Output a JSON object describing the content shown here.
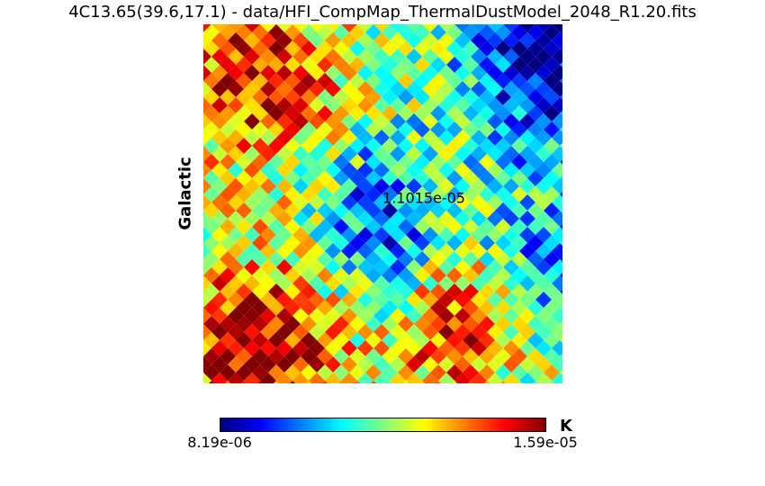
{
  "title": "4C13.65(39.6,17.1) - data/HFI_CompMap_ThermalDustModel_2048_R1.20.fits",
  "coord_label": "Galactic",
  "center_value": "1.1015e-05",
  "colorbar": {
    "min_label": "8.19e-06",
    "max_label": "1.59e-05",
    "unit": "K",
    "colormap": [
      "#000080",
      "#0000ff",
      "#00ffff",
      "#ffff00",
      "#ff0000",
      "#800000"
    ]
  },
  "chart_data": {
    "type": "heatmap",
    "title": "4C13.65(39.6,17.1) - data/HFI_CompMap_ThermalDustModel_2048_R1.20.fits",
    "ylabel": "Galactic",
    "xlabel": "",
    "value_range": [
      8.19e-06,
      1.59e-05
    ],
    "unit": "K",
    "center_value": 1.1015e-05,
    "colormap": "jet",
    "grid": false,
    "legend_placement": "bottom",
    "description_regions": [
      {
        "region": "top-right",
        "level": "low"
      },
      {
        "region": "top-left",
        "level": "high"
      },
      {
        "region": "center",
        "level": "low-mid"
      },
      {
        "region": "bottom-left",
        "level": "high"
      },
      {
        "region": "bottom-right",
        "level": "mid-high"
      }
    ]
  }
}
